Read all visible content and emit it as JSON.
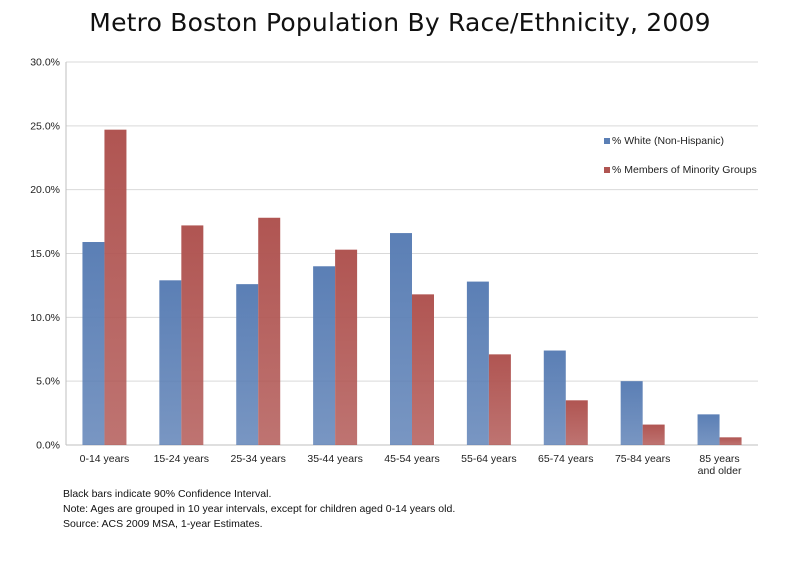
{
  "chart_data": {
    "type": "bar",
    "title": "Metro Boston Population By Race/Ethnicity, 2009",
    "categories": [
      "0-14 years",
      "15-24 years",
      "25-34 years",
      "35-44 years",
      "45-54 years",
      "55-64 years",
      "65-74 years",
      "75-84 years",
      "85 years and older"
    ],
    "series": [
      {
        "name": "% White (Non-Hispanic)",
        "color": "#5b7fb5",
        "values": [
          15.9,
          12.9,
          12.6,
          14.0,
          16.6,
          12.8,
          7.4,
          5.0,
          2.4
        ]
      },
      {
        "name": "% Members of Minority Groups",
        "color": "#b05552",
        "values": [
          24.7,
          17.2,
          17.8,
          15.3,
          11.8,
          7.1,
          3.5,
          1.6,
          0.6
        ]
      }
    ],
    "yticks": [
      "0.0%",
      "5.0%",
      "10.0%",
      "15.0%",
      "20.0%",
      "25.0%",
      "30.0%"
    ],
    "ylim": [
      0,
      30
    ],
    "xlabel": "",
    "ylabel": "",
    "grid": true,
    "legend_position": "top-right"
  },
  "notes": [
    "Black bars indicate 90% Confidence Interval.",
    "Note: Ages are grouped in 10 year intervals, except for children aged 0-14 years old.",
    "Source: ACS 2009 MSA, 1-year Estimates."
  ]
}
